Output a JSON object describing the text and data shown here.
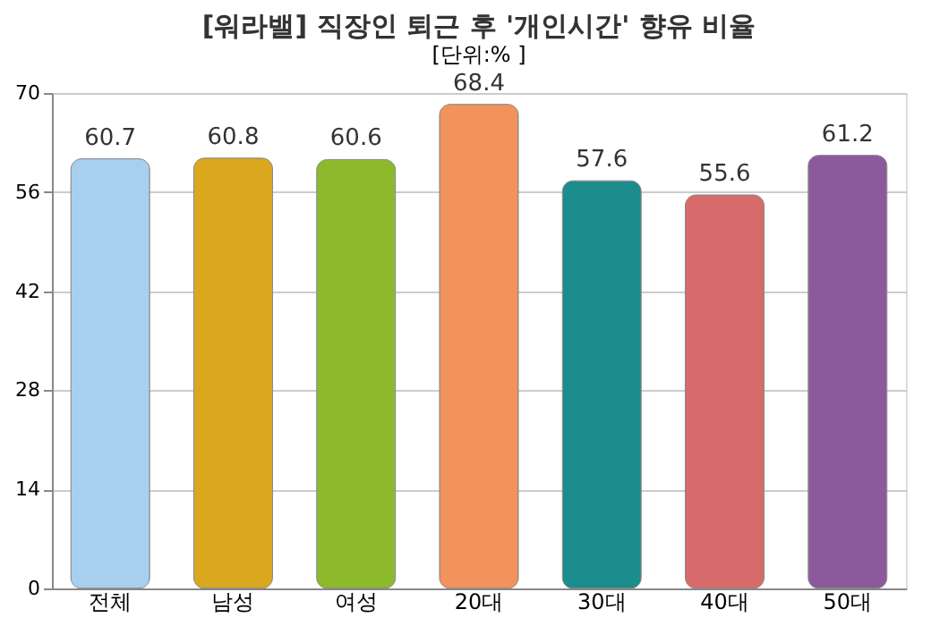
{
  "chart_data": {
    "type": "bar",
    "title": "[워라밸] 직장인 퇴근 후 '개인시간' 향유 비율",
    "subtitle": "[단위:% ]",
    "categories": [
      "전체",
      "남성",
      "여성",
      "20대",
      "30대",
      "40대",
      "50대"
    ],
    "values": [
      60.7,
      60.8,
      60.6,
      68.4,
      57.6,
      55.6,
      61.2
    ],
    "colors": [
      "#a9cfee",
      "#d9a81e",
      "#8dba2c",
      "#f2935c",
      "#1c8c8c",
      "#d86b6b",
      "#8c5a9c"
    ],
    "ylim": [
      0,
      70
    ],
    "yticks": [
      0,
      14,
      28,
      42,
      56,
      70
    ],
    "grid": "y",
    "data_labels": true,
    "legend": false
  }
}
